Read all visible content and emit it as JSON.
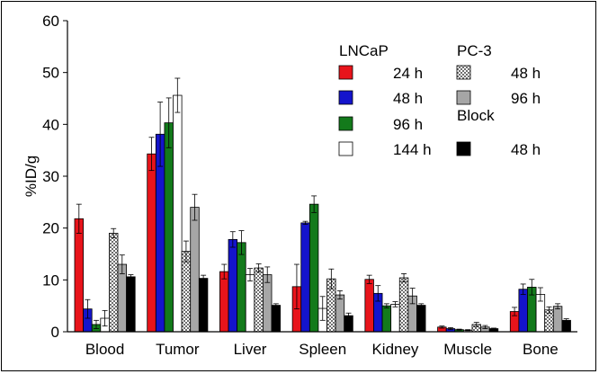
{
  "chart_data": {
    "type": "bar",
    "title": "",
    "xlabel": "",
    "ylabel": "%ID/g",
    "ylim": [
      0,
      60
    ],
    "yticks": [
      0,
      10,
      20,
      30,
      40,
      50,
      60
    ],
    "grid": false,
    "legend_placement": "top-right",
    "categories": [
      "Blood",
      "Tumor",
      "Liver",
      "Spleen",
      "Kidney",
      "Muscle",
      "Bone"
    ],
    "legend_groups": [
      {
        "title": "LNCaP",
        "column": 0,
        "start_row": 0
      },
      {
        "title": "PC-3",
        "column": 1,
        "start_row": 0
      },
      {
        "title": "Block",
        "column": 1,
        "start_row": 2
      }
    ],
    "series": [
      {
        "name": "24 h",
        "group": "LNCaP",
        "color": "#e8141b",
        "pattern": "solid",
        "values": [
          21.8,
          34.3,
          11.6,
          8.7,
          10.1,
          0.9,
          3.9
        ],
        "errors": [
          2.8,
          3.2,
          1.4,
          4.3,
          0.8,
          0.2,
          0.8
        ]
      },
      {
        "name": "48 h",
        "group": "LNCaP",
        "color": "#1414cc",
        "pattern": "solid",
        "values": [
          4.4,
          38.1,
          17.8,
          21.0,
          7.4,
          0.6,
          8.2
        ],
        "errors": [
          1.8,
          6.2,
          1.5,
          0.3,
          1.5,
          0.2,
          1.0
        ]
      },
      {
        "name": "96 h",
        "group": "LNCaP",
        "color": "#137a1b",
        "pattern": "solid",
        "values": [
          1.4,
          40.3,
          17.2,
          24.6,
          5.0,
          0.4,
          8.6
        ],
        "errors": [
          0.8,
          4.8,
          2.3,
          1.6,
          0.4,
          0.1,
          1.5
        ]
      },
      {
        "name": "144 h",
        "group": "LNCaP",
        "color": "#ffffff",
        "pattern": "solid",
        "values": [
          2.6,
          45.6,
          11.0,
          4.5,
          5.3,
          0.3,
          7.2
        ],
        "errors": [
          1.5,
          3.3,
          1.2,
          2.3,
          0.5,
          0.1,
          1.3
        ]
      },
      {
        "name": "48 h",
        "group": "PC-3",
        "color": "#c8c8c8",
        "pattern": "checker",
        "values": [
          19.0,
          15.5,
          12.3,
          10.2,
          10.4,
          1.4,
          4.2
        ],
        "errors": [
          0.9,
          2.0,
          0.8,
          1.9,
          0.8,
          0.4,
          0.6
        ]
      },
      {
        "name": "96 h",
        "group": "PC-3",
        "color": "#a6a6a6",
        "pattern": "solid",
        "values": [
          13.0,
          24.0,
          11.0,
          7.1,
          6.9,
          0.9,
          4.9
        ],
        "errors": [
          1.8,
          2.5,
          1.5,
          0.8,
          1.5,
          0.3,
          0.5
        ]
      },
      {
        "name": "48 h",
        "group": "Block",
        "color": "#000000",
        "pattern": "solid",
        "values": [
          10.6,
          10.3,
          5.1,
          3.1,
          5.1,
          0.6,
          2.2
        ],
        "errors": [
          0.4,
          0.6,
          0.3,
          0.5,
          0.3,
          0.1,
          0.3
        ]
      }
    ]
  }
}
